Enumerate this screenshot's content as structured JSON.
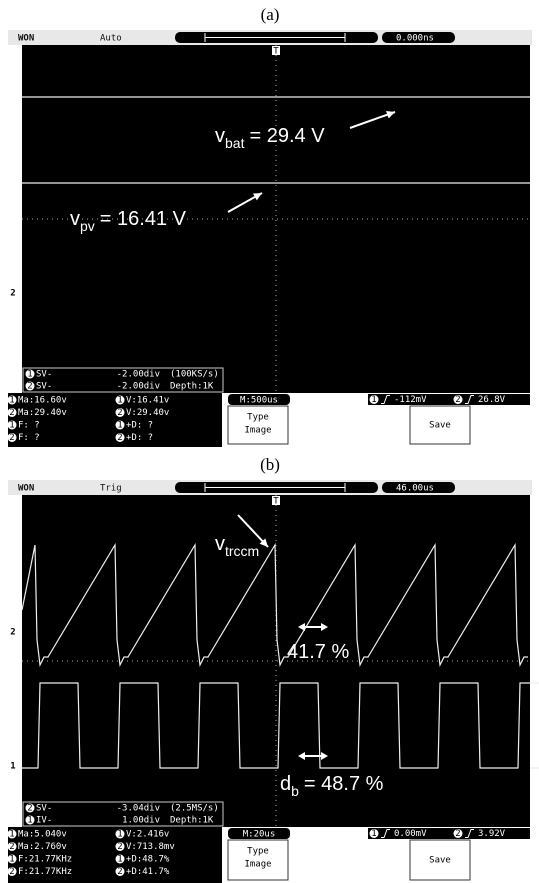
{
  "panels": [
    {
      "caption": "(a)",
      "logo": "WON",
      "mode": "Auto",
      "trigger_marker": "T",
      "time_position": "0.000ns",
      "annotations": [
        {
          "symbol": "v",
          "subscript": "bat",
          "text": "= 29.4 V"
        },
        {
          "symbol": "v",
          "subscript": "pv",
          "text": "= 16.41 V"
        }
      ],
      "channel_markers": [
        "2"
      ],
      "status": [
        {
          "channel": "1",
          "label": "SV-",
          "scale": "-2.00div",
          "info": "(100KS/s)"
        },
        {
          "channel": "2",
          "label": "SV-",
          "scale": "-2.00div",
          "info": "Depth:1K"
        }
      ],
      "measurements": [
        {
          "channel": "1",
          "text": "Ma:16.60v"
        },
        {
          "channel": "1",
          "text": "V:16.41v"
        },
        {
          "channel": "2",
          "text": "Ma:29.40v"
        },
        {
          "channel": "2",
          "text": "V:29.40v"
        },
        {
          "channel": "1",
          "text": "F:  ?"
        },
        {
          "channel": "1",
          "text": "+D:  ?"
        },
        {
          "channel": "2",
          "text": "F:  ?"
        },
        {
          "channel": "2",
          "text": "+D:  ?"
        }
      ],
      "timebase": "M:500us",
      "type_button": [
        "Type",
        "Image"
      ],
      "trigger": [
        {
          "channel": "1",
          "text": "-112mV"
        },
        {
          "channel": "2",
          "text": "26.8V"
        }
      ],
      "save_button": "Save"
    },
    {
      "caption": "(b)",
      "logo": "WON",
      "mode": "Trig",
      "trigger_marker": "T",
      "time_position": "46.00us",
      "annotations": [
        {
          "symbol": "v",
          "subscript": "trccm"
        },
        {
          "text": "41.7 %"
        },
        {
          "symbol": "d",
          "subscript": "b",
          "text": "= 48.7 %"
        }
      ],
      "channel_markers": [
        "2",
        "1"
      ],
      "status": [
        {
          "channel": "2",
          "label": "SV-",
          "scale": "-3.04div",
          "info": "(2.5MS/s)"
        },
        {
          "channel": "1",
          "label": "IV-",
          "scale": "1.00div",
          "info": "Depth:1K"
        }
      ],
      "measurements": [
        {
          "channel": "1",
          "text": "Ma:5.040v"
        },
        {
          "channel": "1",
          "text": "V:2.416v"
        },
        {
          "channel": "2",
          "text": "Ma:2.760v"
        },
        {
          "channel": "2",
          "text": "V:713.8mv"
        },
        {
          "channel": "1",
          "text": "F:21.77KHz"
        },
        {
          "channel": "1",
          "text": "+D:48.7%"
        },
        {
          "channel": "2",
          "text": "F:21.77KHz"
        },
        {
          "channel": "2",
          "text": "+D:41.7%"
        }
      ],
      "timebase": "M:20us",
      "type_button": [
        "Type",
        "Image"
      ],
      "trigger": [
        {
          "channel": "1",
          "text": "0.00mV"
        },
        {
          "channel": "2",
          "text": "3.92V"
        }
      ],
      "save_button": "Save"
    }
  ]
}
